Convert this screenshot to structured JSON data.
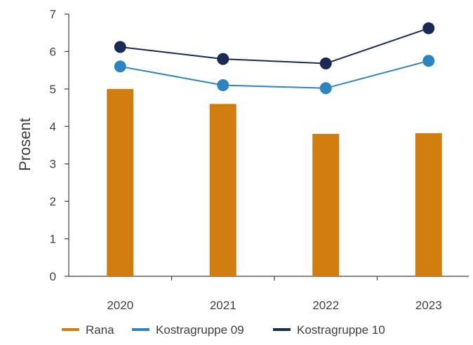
{
  "chart_data": {
    "type": "bar+line",
    "categories": [
      "2020",
      "2021",
      "2022",
      "2023"
    ],
    "ylabel": "Prosent",
    "ylim": [
      0,
      7
    ],
    "yticks": [
      0,
      1,
      2,
      3,
      4,
      5,
      6,
      7
    ],
    "grid": false,
    "legend_position": "bottom",
    "series": [
      {
        "name": "Rana",
        "kind": "bar",
        "color": "#d17c0e",
        "values": [
          5.0,
          4.6,
          3.8,
          3.82
        ]
      },
      {
        "name": "Kostragruppe 09",
        "kind": "line",
        "color": "#2e84c0",
        "values": [
          5.6,
          5.1,
          5.02,
          5.75
        ]
      },
      {
        "name": "Kostragruppe 10",
        "kind": "line",
        "color": "#1b2a55",
        "values": [
          6.12,
          5.8,
          5.68,
          6.62
        ]
      }
    ]
  }
}
